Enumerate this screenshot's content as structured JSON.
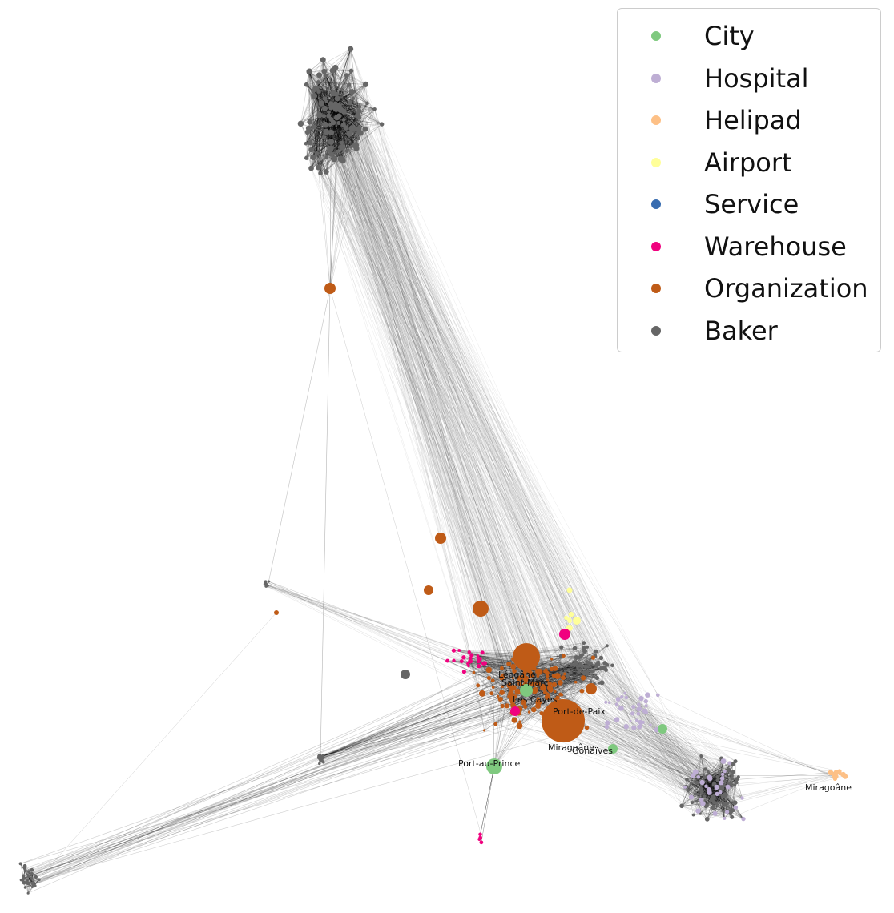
{
  "legend": {
    "items": [
      {
        "label": "City",
        "color": "#7fc97f"
      },
      {
        "label": "Hospital",
        "color": "#beaed4"
      },
      {
        "label": "Helipad",
        "color": "#fdc086"
      },
      {
        "label": "Airport",
        "color": "#ffff99"
      },
      {
        "label": "Service",
        "color": "#386cb0"
      },
      {
        "label": "Warehouse",
        "color": "#f0027f"
      },
      {
        "label": "Organization",
        "color": "#bf5b17"
      },
      {
        "label": "Baker",
        "color": "#666666"
      }
    ]
  },
  "node_labels": [
    {
      "text": "Léogâne"
    },
    {
      "text": "Saint-Marc"
    },
    {
      "text": "Les Cayes"
    },
    {
      "text": "Port-de-Paix"
    },
    {
      "text": "Miragoâne"
    },
    {
      "text": "Gonaïves"
    },
    {
      "text": "Port-au-Prince"
    },
    {
      "text": "Miragoâne"
    }
  ],
  "edge_color": "#000000",
  "colors": {
    "city": "#7fc97f",
    "hospital": "#beaed4",
    "helipad": "#fdc086",
    "airport": "#ffff99",
    "service": "#386cb0",
    "warehouse": "#f0027f",
    "organization": "#bf5b17",
    "baker": "#666666"
  }
}
